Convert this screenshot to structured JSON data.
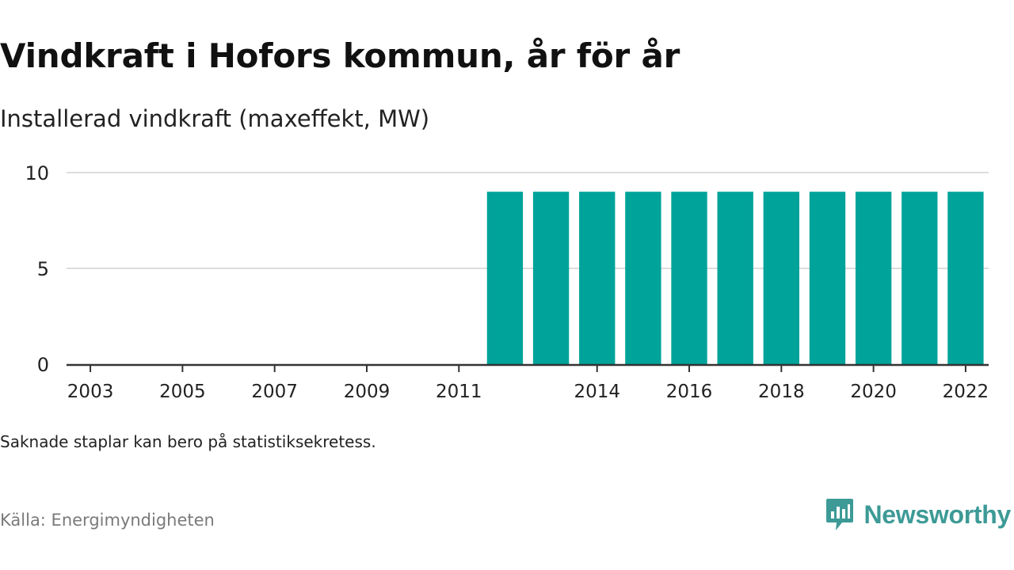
{
  "header": {
    "title": "Vindkraft i Hofors kommun, år för år",
    "subtitle": "Installerad vindkraft (maxeffekt, MW)"
  },
  "footer": {
    "note": "Saknade staplar kan bero på statistiksekretess.",
    "source": "Källa: Energimyndigheten",
    "brand": "Newsworthy",
    "brand_icon": "bar-chart-speech-bubble-icon"
  },
  "colors": {
    "bar": "#00a39a",
    "brand": "#3d9a96",
    "grid": "#dddddd",
    "axis": "#333333"
  },
  "chart_data": {
    "type": "bar",
    "categories": [
      "2003",
      "2004",
      "2005",
      "2006",
      "2007",
      "2008",
      "2009",
      "2010",
      "2011",
      "2012",
      "2013",
      "2014",
      "2015",
      "2016",
      "2017",
      "2018",
      "2019",
      "2020",
      "2021",
      "2022"
    ],
    "values": [
      null,
      null,
      null,
      null,
      null,
      null,
      null,
      null,
      null,
      9,
      9,
      9,
      9,
      9,
      9,
      9,
      9,
      9,
      9,
      9
    ],
    "x_tick_labels": [
      "2003",
      "2005",
      "2007",
      "2009",
      "2011",
      "2014",
      "2016",
      "2018",
      "2020",
      "2022"
    ],
    "y_ticks": [
      0,
      5,
      10
    ],
    "ylim": [
      0,
      10
    ],
    "grid": true,
    "legend": "none",
    "title": "Vindkraft i Hofors kommun, år för år",
    "ylabel": "Installerad vindkraft (maxeffekt, MW)",
    "xlabel": ""
  }
}
